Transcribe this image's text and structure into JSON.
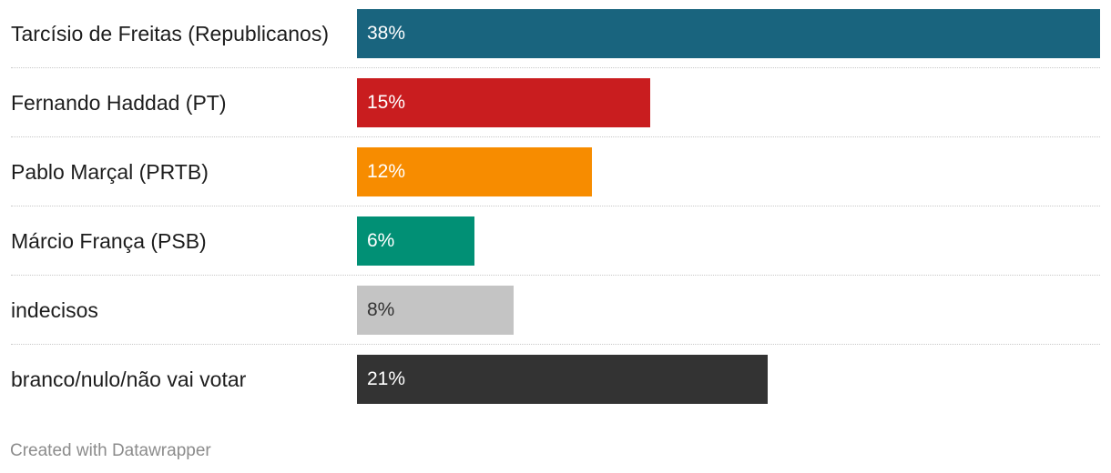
{
  "chart_data": {
    "type": "bar",
    "orientation": "horizontal",
    "categories": [
      "Tarcísio de Freitas (Republicanos)",
      "Fernando Haddad (PT)",
      "Pablo Marçal (PRTB)",
      "Márcio França (PSB)",
      "indecisos",
      "branco/nulo/não vai votar"
    ],
    "values": [
      38,
      15,
      12,
      6,
      8,
      21
    ],
    "value_labels": [
      "38%",
      "15%",
      "12%",
      "6%",
      "8%",
      "21%"
    ],
    "colors": [
      "#19647e",
      "#c91d1f",
      "#f78c00",
      "#019075",
      "#c4c4c4",
      "#333333"
    ],
    "value_label_colors": [
      "#ffffff",
      "#ffffff",
      "#ffffff",
      "#ffffff",
      "#333333",
      "#ffffff"
    ],
    "xlim": [
      0,
      38
    ],
    "grid": false
  },
  "footer": {
    "credit": "Created with Datawrapper"
  }
}
